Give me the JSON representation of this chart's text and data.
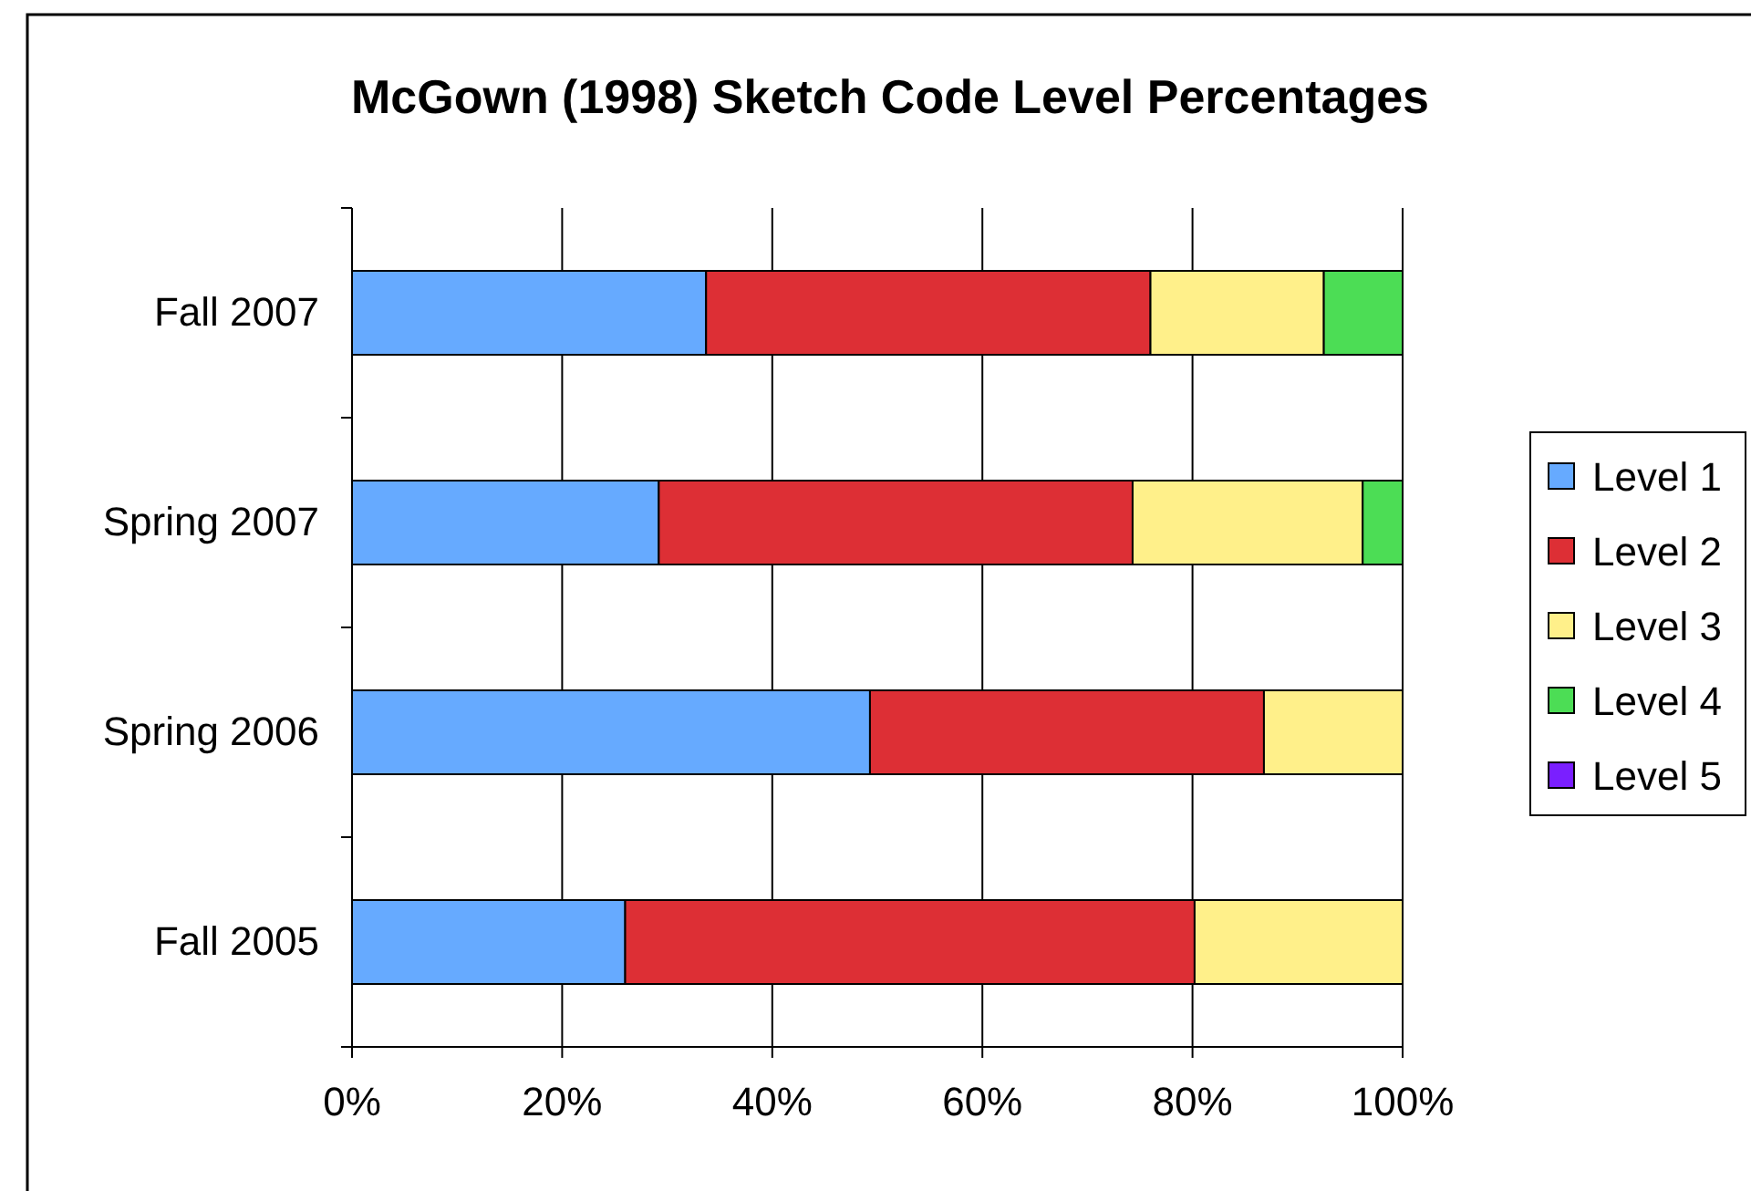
{
  "chart_data": {
    "type": "bar",
    "orientation": "horizontal",
    "stacked": true,
    "title": "McGown (1998) Sketch Code Level Percentages",
    "categories": [
      "Fall 2007",
      "Spring 2007",
      "Spring 2006",
      "Fall 2005"
    ],
    "series": [
      {
        "name": "Level 1",
        "color": "#66aaff",
        "values": [
          33.7,
          29.2,
          49.3,
          26.0
        ]
      },
      {
        "name": "Level 2",
        "color": "#dd2f35",
        "values": [
          42.3,
          45.1,
          37.5,
          54.2
        ]
      },
      {
        "name": "Level 3",
        "color": "#fff08a",
        "values": [
          16.5,
          21.9,
          13.2,
          19.8
        ]
      },
      {
        "name": "Level 4",
        "color": "#4cdd55",
        "values": [
          7.5,
          3.8,
          0,
          0
        ]
      },
      {
        "name": "Level 5",
        "color": "#7a1fff",
        "values": [
          0,
          0,
          0,
          0
        ]
      }
    ],
    "xlim": [
      0,
      100
    ],
    "xticks": [
      {
        "value": 0,
        "label": "0%"
      },
      {
        "value": 20,
        "label": "20%"
      },
      {
        "value": 40,
        "label": "40%"
      },
      {
        "value": 60,
        "label": "60%"
      },
      {
        "value": 80,
        "label": "80%"
      },
      {
        "value": 100,
        "label": "100%"
      }
    ],
    "grid": "x",
    "legend": "right"
  }
}
